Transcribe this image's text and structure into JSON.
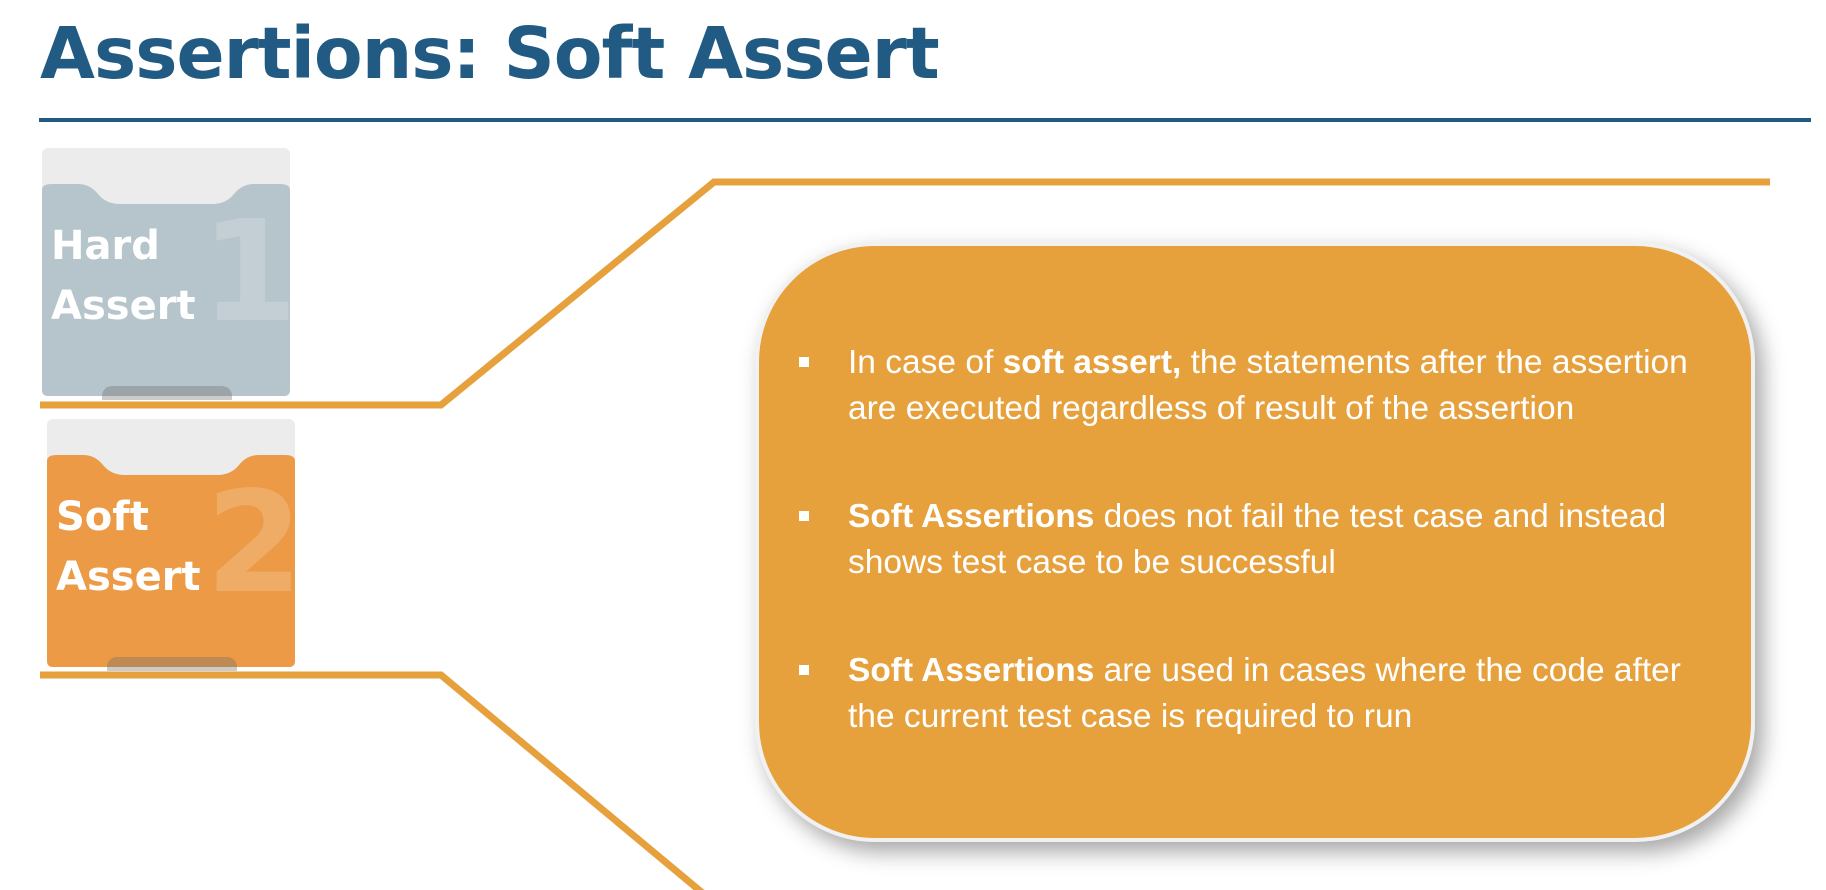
{
  "slide": {
    "title": "Assertions: Soft Assert"
  },
  "colors": {
    "title": "#215b83",
    "accent": "#e6a03c",
    "hard_tab": "#b6c5cb",
    "soft_tab": "#ec9a45"
  },
  "tabs": [
    {
      "label": "Hard Assert",
      "line1": "Hard",
      "line2": "Assert",
      "number": "1",
      "active": false
    },
    {
      "label": "Soft Assert",
      "line1": "Soft",
      "line2": "Assert",
      "number": "2",
      "active": true
    }
  ],
  "bullets": [
    {
      "pre": "In case of ",
      "bold": "soft assert,",
      "post": " the statements after the assertion are executed regardless of result of the assertion"
    },
    {
      "pre": "",
      "bold": "Soft Assertions",
      "post": " does not fail the test case and instead shows test case to be successful"
    },
    {
      "pre": "",
      "bold": "Soft Assertions",
      "post": " are used in cases where the code after the current test case is required to run"
    }
  ]
}
